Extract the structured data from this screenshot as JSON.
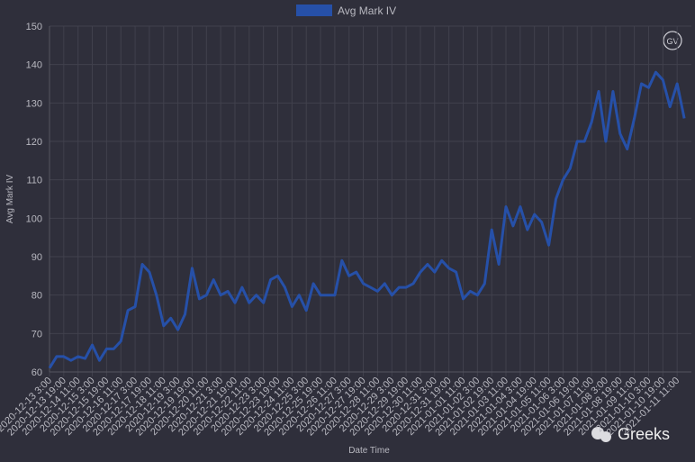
{
  "chart_data": {
    "type": "line",
    "x_label": "Date Time",
    "y_label": "Avg Mark IV",
    "logo": "GV",
    "watermark": "Greeks",
    "categories": [
      "2020-12-13 3:00",
      null,
      "2020-12-13 19:00",
      null,
      "2020-12-14 11:00",
      null,
      "2020-12-15 3:00",
      null,
      "2020-12-15 19:00",
      null,
      "2020-12-16 11:00",
      null,
      "2020-12-17 3:00",
      null,
      "2020-12-17 19:00",
      null,
      "2020-12-18 11:00",
      null,
      "2020-12-19 3:00",
      null,
      "2020-12-19 19:00",
      null,
      "2020-12-20 11:00",
      null,
      "2020-12-21 3:00",
      null,
      "2020-12-21 19:00",
      null,
      "2020-12-22 11:00",
      null,
      "2020-12-23 3:00",
      null,
      "2020-12-23 19:00",
      null,
      "2020-12-24 11:00",
      null,
      "2020-12-25 3:00",
      null,
      "2020-12-25 19:00",
      null,
      "2020-12-26 11:00",
      null,
      "2020-12-27 3:00",
      null,
      "2020-12-27 19:00",
      null,
      "2020-12-28 11:00",
      null,
      "2020-12-29 3:00",
      null,
      "2020-12-29 19:00",
      null,
      "2020-12-30 11:00",
      null,
      "2020-12-31 3:00",
      null,
      "2020-12-31 19:00",
      null,
      "2021-01-01 11:00",
      null,
      "2021-01-02 3:00",
      null,
      "2021-01-02 19:00",
      null,
      "2021-01-03 11:00",
      null,
      "2021-01-04 3:00",
      null,
      "2021-01-04 19:00",
      null,
      "2021-01-05 11:00",
      null,
      "2021-01-06 3:00",
      null,
      "2021-01-06 19:00",
      null,
      "2021-01-07 11:00",
      null,
      "2021-01-08 3:00",
      null,
      "2021-01-08 19:00",
      null,
      "2021-01-09 11:00",
      null,
      "2021-01-10 3:00",
      null,
      "2021-01-10 19:00",
      null,
      "2021-01-11 11:00",
      null
    ],
    "series": [
      {
        "name": "Avg Mark IV",
        "color": "#2650a8",
        "values": [
          61,
          64,
          64,
          63,
          64,
          63.5,
          67,
          63,
          66,
          66,
          68,
          76,
          77,
          88,
          86,
          80,
          72,
          74,
          71,
          75,
          87,
          79,
          80,
          84,
          80,
          81,
          78,
          82,
          78,
          80,
          78,
          84,
          85,
          82,
          77,
          80,
          76,
          83,
          80,
          80,
          80,
          89,
          85,
          86,
          83,
          82,
          81,
          83,
          80,
          82,
          82,
          83,
          86,
          88,
          86,
          89,
          87,
          86,
          79,
          81,
          80,
          83,
          97,
          88,
          103,
          98,
          103,
          97,
          101,
          99,
          93,
          105,
          110,
          113,
          120,
          120,
          125,
          133,
          120,
          133,
          122,
          118,
          126,
          135,
          134,
          138,
          136,
          129,
          135,
          126
        ]
      }
    ],
    "ylim": [
      60,
      150
    ],
    "yticks": [
      60,
      70,
      80,
      90,
      100,
      110,
      120,
      130,
      140,
      150
    ],
    "grid": true
  }
}
